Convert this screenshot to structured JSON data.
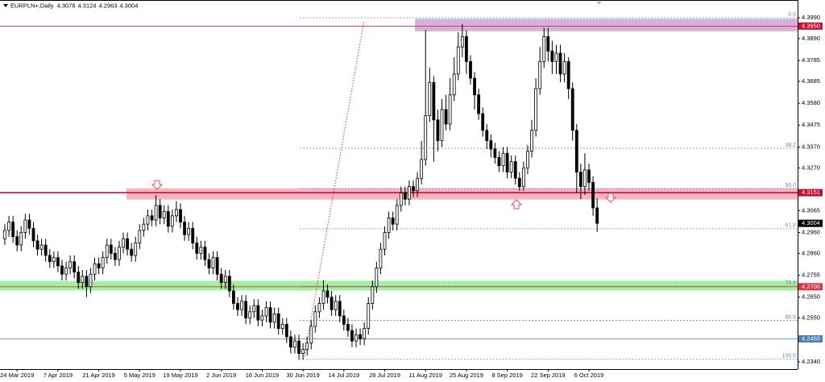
{
  "chart_data": {
    "type": "candlestick",
    "title": "EURPLN+,Daily",
    "categories": [
      null,
      null,
      null,
      "24 Mar 2019",
      null,
      null,
      null,
      null,
      null,
      null,
      null,
      null,
      null,
      "7 Apr 2019",
      null,
      null,
      null,
      null,
      null,
      null,
      null,
      null,
      null,
      "21 Apr 2019",
      null,
      null,
      null,
      null,
      null,
      null,
      null,
      null,
      null,
      "5 May 2019",
      null,
      null,
      null,
      null,
      null,
      null,
      null,
      null,
      null,
      "19 May 2019",
      null,
      null,
      null,
      null,
      null,
      null,
      null,
      null,
      null,
      "2 Jun 2019",
      null,
      null,
      null,
      null,
      null,
      null,
      null,
      null,
      null,
      "16 Jun 2019",
      null,
      null,
      null,
      null,
      null,
      null,
      null,
      null,
      null,
      "30 Jun 2019",
      null,
      null,
      null,
      null,
      null,
      null,
      null,
      null,
      null,
      "14 Jul 2019",
      null,
      null,
      null,
      null,
      null,
      null,
      null,
      null,
      null,
      "28 Jul 2019",
      null,
      null,
      null,
      null,
      null,
      null,
      null,
      null,
      null,
      "11 Aug 2019",
      null,
      null,
      null,
      null,
      null,
      null,
      null,
      null,
      null,
      "25 Aug 2019",
      null,
      null,
      null,
      null,
      null,
      null,
      null,
      null,
      null,
      "8 Sep 2019",
      null,
      null,
      null,
      null,
      null,
      null,
      null,
      null,
      null,
      "22 Sep 2019",
      null,
      null,
      null,
      null,
      null,
      null,
      null,
      null,
      null,
      "6 Oct 2019",
      null,
      null
    ],
    "open": [
      4.293,
      4.297,
      4.301,
      4.294,
      4.29,
      4.296,
      4.302,
      4.298,
      4.292,
      4.288,
      4.29,
      4.285,
      4.282,
      4.284,
      4.28,
      4.276,
      4.279,
      4.282,
      4.277,
      4.272,
      4.275,
      4.27,
      4.276,
      4.281,
      4.279,
      4.284,
      4.29,
      4.286,
      4.283,
      4.289,
      4.293,
      4.288,
      4.285,
      4.291,
      4.297,
      4.3,
      4.304,
      4.302,
      4.309,
      4.303,
      4.306,
      4.299,
      4.304,
      4.307,
      4.301,
      4.295,
      4.298,
      4.291,
      4.286,
      4.289,
      4.283,
      4.279,
      4.284,
      4.276,
      4.272,
      4.275,
      4.268,
      4.262,
      4.259,
      4.263,
      4.255,
      4.258,
      4.261,
      4.254,
      4.256,
      4.26,
      4.253,
      4.257,
      4.25,
      4.252,
      4.246,
      4.241,
      4.244,
      4.238,
      4.24,
      4.243,
      4.251,
      4.258,
      4.262,
      4.268,
      4.265,
      4.259,
      4.263,
      4.256,
      4.252,
      4.249,
      4.244,
      4.247,
      4.245,
      4.25,
      4.262,
      4.27,
      4.279,
      4.288,
      4.296,
      4.303,
      4.3,
      4.309,
      4.315,
      4.312,
      4.318,
      4.316,
      4.322,
      4.331,
      4.352,
      4.368,
      4.35,
      4.34,
      4.355,
      4.348,
      4.362,
      4.372,
      4.385,
      4.39,
      4.378,
      4.37,
      4.362,
      4.353,
      4.345,
      4.34,
      4.336,
      4.332,
      4.328,
      4.334,
      4.325,
      4.33,
      4.322,
      4.318,
      4.327,
      4.335,
      4.345,
      4.365,
      4.378,
      4.39,
      4.383,
      4.378,
      4.382,
      4.372,
      4.378,
      4.365,
      4.345,
      4.325,
      4.318,
      4.326,
      4.32,
      4.3078
    ],
    "high": [
      4.3,
      4.304,
      4.304,
      4.297,
      4.299,
      4.305,
      4.305,
      4.301,
      4.295,
      4.293,
      4.293,
      4.288,
      4.287,
      4.287,
      4.283,
      4.282,
      4.285,
      4.285,
      4.28,
      4.278,
      4.278,
      4.279,
      4.284,
      4.284,
      4.287,
      4.293,
      4.293,
      4.289,
      4.292,
      4.296,
      4.296,
      4.291,
      4.294,
      4.3,
      4.303,
      4.307,
      4.307,
      4.314,
      4.312,
      4.309,
      4.309,
      4.307,
      4.311,
      4.31,
      4.304,
      4.301,
      4.301,
      4.294,
      4.292,
      4.292,
      4.286,
      4.287,
      4.287,
      4.279,
      4.278,
      4.278,
      4.271,
      4.265,
      4.266,
      4.266,
      4.261,
      4.264,
      4.264,
      4.259,
      4.263,
      4.263,
      4.26,
      4.26,
      4.255,
      4.255,
      4.249,
      4.247,
      4.247,
      4.243,
      4.246,
      4.254,
      4.261,
      4.265,
      4.273,
      4.271,
      4.268,
      4.266,
      4.266,
      4.259,
      4.255,
      4.252,
      4.25,
      4.25,
      4.253,
      4.265,
      4.273,
      4.282,
      4.291,
      4.299,
      4.306,
      4.306,
      4.312,
      4.318,
      4.318,
      4.321,
      4.321,
      4.325,
      4.34,
      4.393,
      4.375,
      4.371,
      4.355,
      4.36,
      4.362,
      4.37,
      4.38,
      4.392,
      4.396,
      4.393,
      4.381,
      4.373,
      4.365,
      4.356,
      4.348,
      4.343,
      4.339,
      4.335,
      4.337,
      4.337,
      4.333,
      4.333,
      4.325,
      4.33,
      4.338,
      4.35,
      4.37,
      4.385,
      4.394,
      4.394,
      4.388,
      4.386,
      4.386,
      4.382,
      4.38,
      4.368,
      4.348,
      4.329,
      4.334,
      4.329,
      4.323,
      4.3124
    ],
    "low": [
      4.29,
      4.294,
      4.291,
      4.287,
      4.287,
      4.293,
      4.295,
      4.289,
      4.285,
      4.285,
      4.282,
      4.279,
      4.279,
      4.277,
      4.273,
      4.273,
      4.276,
      4.274,
      4.269,
      4.269,
      4.265,
      4.267,
      4.273,
      4.276,
      4.276,
      4.281,
      4.283,
      4.28,
      4.28,
      4.286,
      4.285,
      4.282,
      4.282,
      4.288,
      4.294,
      4.297,
      4.299,
      4.299,
      4.3,
      4.3,
      4.296,
      4.296,
      4.301,
      4.298,
      4.292,
      4.292,
      4.288,
      4.283,
      4.283,
      4.28,
      4.276,
      4.276,
      4.273,
      4.269,
      4.269,
      4.265,
      4.259,
      4.256,
      4.256,
      4.252,
      4.252,
      4.255,
      4.251,
      4.251,
      4.253,
      4.25,
      4.25,
      4.247,
      4.247,
      4.243,
      4.238,
      4.238,
      4.235,
      4.235,
      4.237,
      4.24,
      4.248,
      4.255,
      4.259,
      4.262,
      4.256,
      4.256,
      4.253,
      4.249,
      4.246,
      4.241,
      4.241,
      4.242,
      4.242,
      4.247,
      4.259,
      4.267,
      4.276,
      4.285,
      4.293,
      4.297,
      4.297,
      4.306,
      4.309,
      4.309,
      4.313,
      4.313,
      4.319,
      4.328,
      4.349,
      4.33,
      4.335,
      4.337,
      4.345,
      4.345,
      4.359,
      4.369,
      4.38,
      4.372,
      4.367,
      4.355,
      4.35,
      4.342,
      4.336,
      4.332,
      4.329,
      4.325,
      4.325,
      4.322,
      4.322,
      4.319,
      4.316,
      4.316,
      4.324,
      4.332,
      4.342,
      4.362,
      4.375,
      4.378,
      4.372,
      4.372,
      4.368,
      4.368,
      4.36,
      4.34,
      4.315,
      4.312,
      4.314,
      4.316,
      4.304,
      4.2963
    ],
    "close": [
      4.297,
      4.301,
      4.294,
      4.29,
      4.296,
      4.302,
      4.298,
      4.292,
      4.288,
      4.29,
      4.285,
      4.282,
      4.284,
      4.28,
      4.276,
      4.279,
      4.282,
      4.277,
      4.272,
      4.275,
      4.27,
      4.276,
      4.281,
      4.279,
      4.284,
      4.29,
      4.286,
      4.283,
      4.289,
      4.293,
      4.288,
      4.285,
      4.291,
      4.297,
      4.3,
      4.304,
      4.302,
      4.309,
      4.303,
      4.306,
      4.299,
      4.304,
      4.307,
      4.301,
      4.295,
      4.298,
      4.291,
      4.286,
      4.289,
      4.283,
      4.279,
      4.284,
      4.276,
      4.272,
      4.275,
      4.268,
      4.262,
      4.259,
      4.263,
      4.255,
      4.258,
      4.261,
      4.254,
      4.256,
      4.26,
      4.253,
      4.257,
      4.25,
      4.252,
      4.246,
      4.241,
      4.244,
      4.238,
      4.24,
      4.243,
      4.251,
      4.258,
      4.262,
      4.268,
      4.265,
      4.259,
      4.263,
      4.256,
      4.252,
      4.249,
      4.244,
      4.247,
      4.245,
      4.25,
      4.262,
      4.27,
      4.279,
      4.288,
      4.296,
      4.303,
      4.3,
      4.309,
      4.315,
      4.312,
      4.318,
      4.316,
      4.322,
      4.331,
      4.352,
      4.368,
      4.35,
      4.34,
      4.355,
      4.348,
      4.362,
      4.372,
      4.385,
      4.39,
      4.378,
      4.37,
      4.362,
      4.353,
      4.345,
      4.34,
      4.336,
      4.332,
      4.328,
      4.334,
      4.325,
      4.33,
      4.322,
      4.318,
      4.327,
      4.335,
      4.345,
      4.365,
      4.378,
      4.39,
      4.383,
      4.378,
      4.382,
      4.372,
      4.378,
      4.365,
      4.345,
      4.325,
      4.318,
      4.326,
      4.32,
      4.3078,
      4.3004
    ],
    "ylim": [
      4.2305,
      4.4075
    ],
    "yticks": [
      {
        "value": 4.399,
        "label": "4.3990"
      },
      {
        "value": 4.389,
        "label": "4.3890"
      },
      4.3785,
      4.3685,
      {
        "value": 4.358,
        "label": "4.3580"
      },
      4.3475,
      {
        "value": 4.337,
        "label": "4.3370"
      },
      {
        "value": 4.327,
        "label": "4.3270"
      },
      4.3065,
      {
        "value": 4.296,
        "label": "4.2960"
      },
      {
        "value": 4.286,
        "label": "4.2860"
      },
      4.2755,
      {
        "value": 4.265,
        "label": "4.2650"
      },
      {
        "value": 4.255,
        "label": "4.2550"
      },
      {
        "value": 4.234,
        "label": "4.2340"
      }
    ],
    "up_color": "#ffffff",
    "down_color": "#000000",
    "levels": [
      {
        "value": 4.395,
        "label": "4.3950",
        "color": "#c8102e"
      },
      {
        "value": 4.3151,
        "label": "4.3151",
        "color": "#c8102e"
      },
      {
        "value": 4.27,
        "label": "4.2700",
        "color": "#e0334a"
      },
      {
        "value": 4.245,
        "label": "4.2450",
        "color": "#4a7fb5"
      }
    ],
    "zones": [
      {
        "from": 4.3925,
        "to": 4.3985,
        "color": "#cda5d6"
      },
      {
        "from": 4.3118,
        "to": 4.3172,
        "color": "#f6a6b7"
      },
      {
        "from": 4.2682,
        "to": 4.2728,
        "color": "#90ee90"
      }
    ],
    "fib": [
      {
        "level": "0.0",
        "price": 4.399
      },
      {
        "level": "38.2",
        "price": 4.3364
      },
      {
        "level": "50.0",
        "price": 4.3171
      },
      {
        "level": "61.8",
        "price": 4.2978
      },
      {
        "level": "78.6",
        "price": 4.2703
      },
      {
        "level": "88.6",
        "price": 4.2539
      },
      {
        "level": "100.0",
        "price": 4.2352
      }
    ]
  }
}
